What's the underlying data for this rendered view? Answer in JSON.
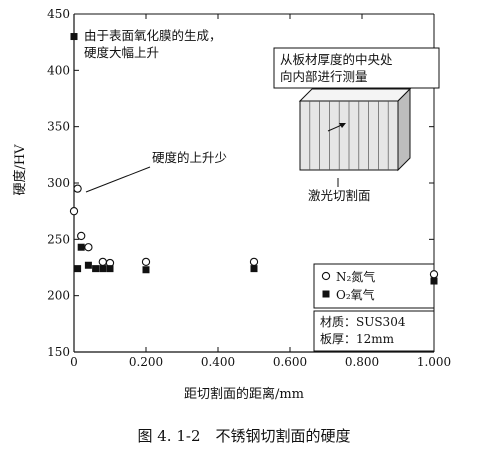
{
  "chart_data": {
    "type": "scatter",
    "xlabel": "距切割面的距离/mm",
    "ylabel": "硬度/HV",
    "xlim": [
      0,
      1.0
    ],
    "ylim": [
      150,
      450
    ],
    "xticks": [
      "0",
      "0.200",
      "0.400",
      "0.600",
      "0.800",
      "1.000"
    ],
    "yticks": [
      "150",
      "200",
      "250",
      "300",
      "350",
      "400",
      "450"
    ],
    "grid": false,
    "legend_position": "bottom-right",
    "series": [
      {
        "name": "N₂氮气",
        "marker": "open-circle",
        "points": [
          {
            "x": 0.0,
            "y": 275
          },
          {
            "x": 0.01,
            "y": 295
          },
          {
            "x": 0.02,
            "y": 253
          },
          {
            "x": 0.04,
            "y": 243
          },
          {
            "x": 0.08,
            "y": 230
          },
          {
            "x": 0.1,
            "y": 229
          },
          {
            "x": 0.2,
            "y": 230
          },
          {
            "x": 0.5,
            "y": 230
          },
          {
            "x": 1.0,
            "y": 219
          }
        ]
      },
      {
        "name": "O₂氧气",
        "marker": "filled-square",
        "points": [
          {
            "x": 0.0,
            "y": 430
          },
          {
            "x": 0.01,
            "y": 224
          },
          {
            "x": 0.02,
            "y": 243
          },
          {
            "x": 0.04,
            "y": 227
          },
          {
            "x": 0.06,
            "y": 224
          },
          {
            "x": 0.08,
            "y": 224
          },
          {
            "x": 0.1,
            "y": 224
          },
          {
            "x": 0.2,
            "y": 223
          },
          {
            "x": 0.5,
            "y": 224
          },
          {
            "x": 1.0,
            "y": 213
          }
        ]
      }
    ],
    "annotations": {
      "oxide_line1": "由于表面氧化膜的生成，",
      "oxide_line2": "硬度大幅上升",
      "small_rise": "硬度的上升少",
      "measure_line1": "从板材厚度的中央处",
      "measure_line2": "向内部进行测量",
      "cut_face": "激光切割面"
    },
    "material_box": {
      "line1": "材质：SUS304",
      "line2": "板厚：12mm"
    },
    "legend": {
      "n2": "N₂氮气",
      "o2": "O₂氧气"
    },
    "caption": "图 4. 1-2　不锈钢切割面的硬度",
    "colors": {
      "ink": "#111111",
      "paper": "#ffffff",
      "block_face": "#e6e6e6",
      "block_top": "#f4f4f4",
      "block_side": "#bdbdbd"
    }
  }
}
